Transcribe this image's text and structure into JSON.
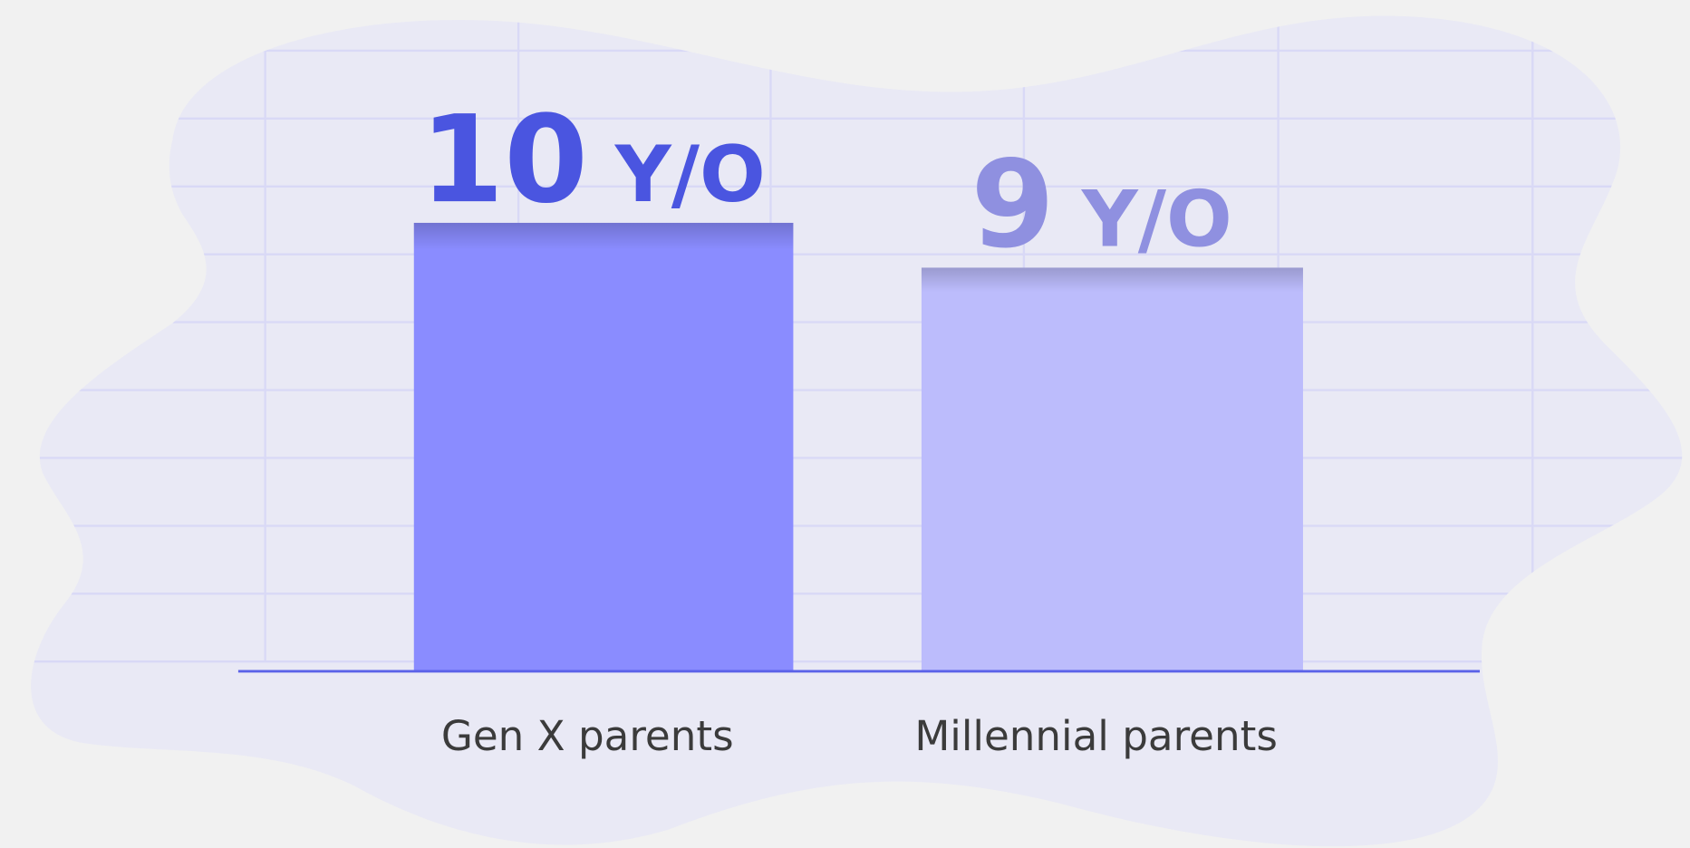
{
  "chart_data": {
    "type": "bar",
    "categories": [
      "Gen X parents",
      "Millennial parents"
    ],
    "values": [
      10,
      9
    ],
    "value_labels": [
      "10 Y/O",
      "9 Y/O"
    ],
    "colors": [
      "#8a8cff",
      "#bcbcfc"
    ],
    "label_colors": [
      "#4a55e0",
      "#8f90e0"
    ],
    "ylim": [
      0,
      10.5
    ]
  }
}
